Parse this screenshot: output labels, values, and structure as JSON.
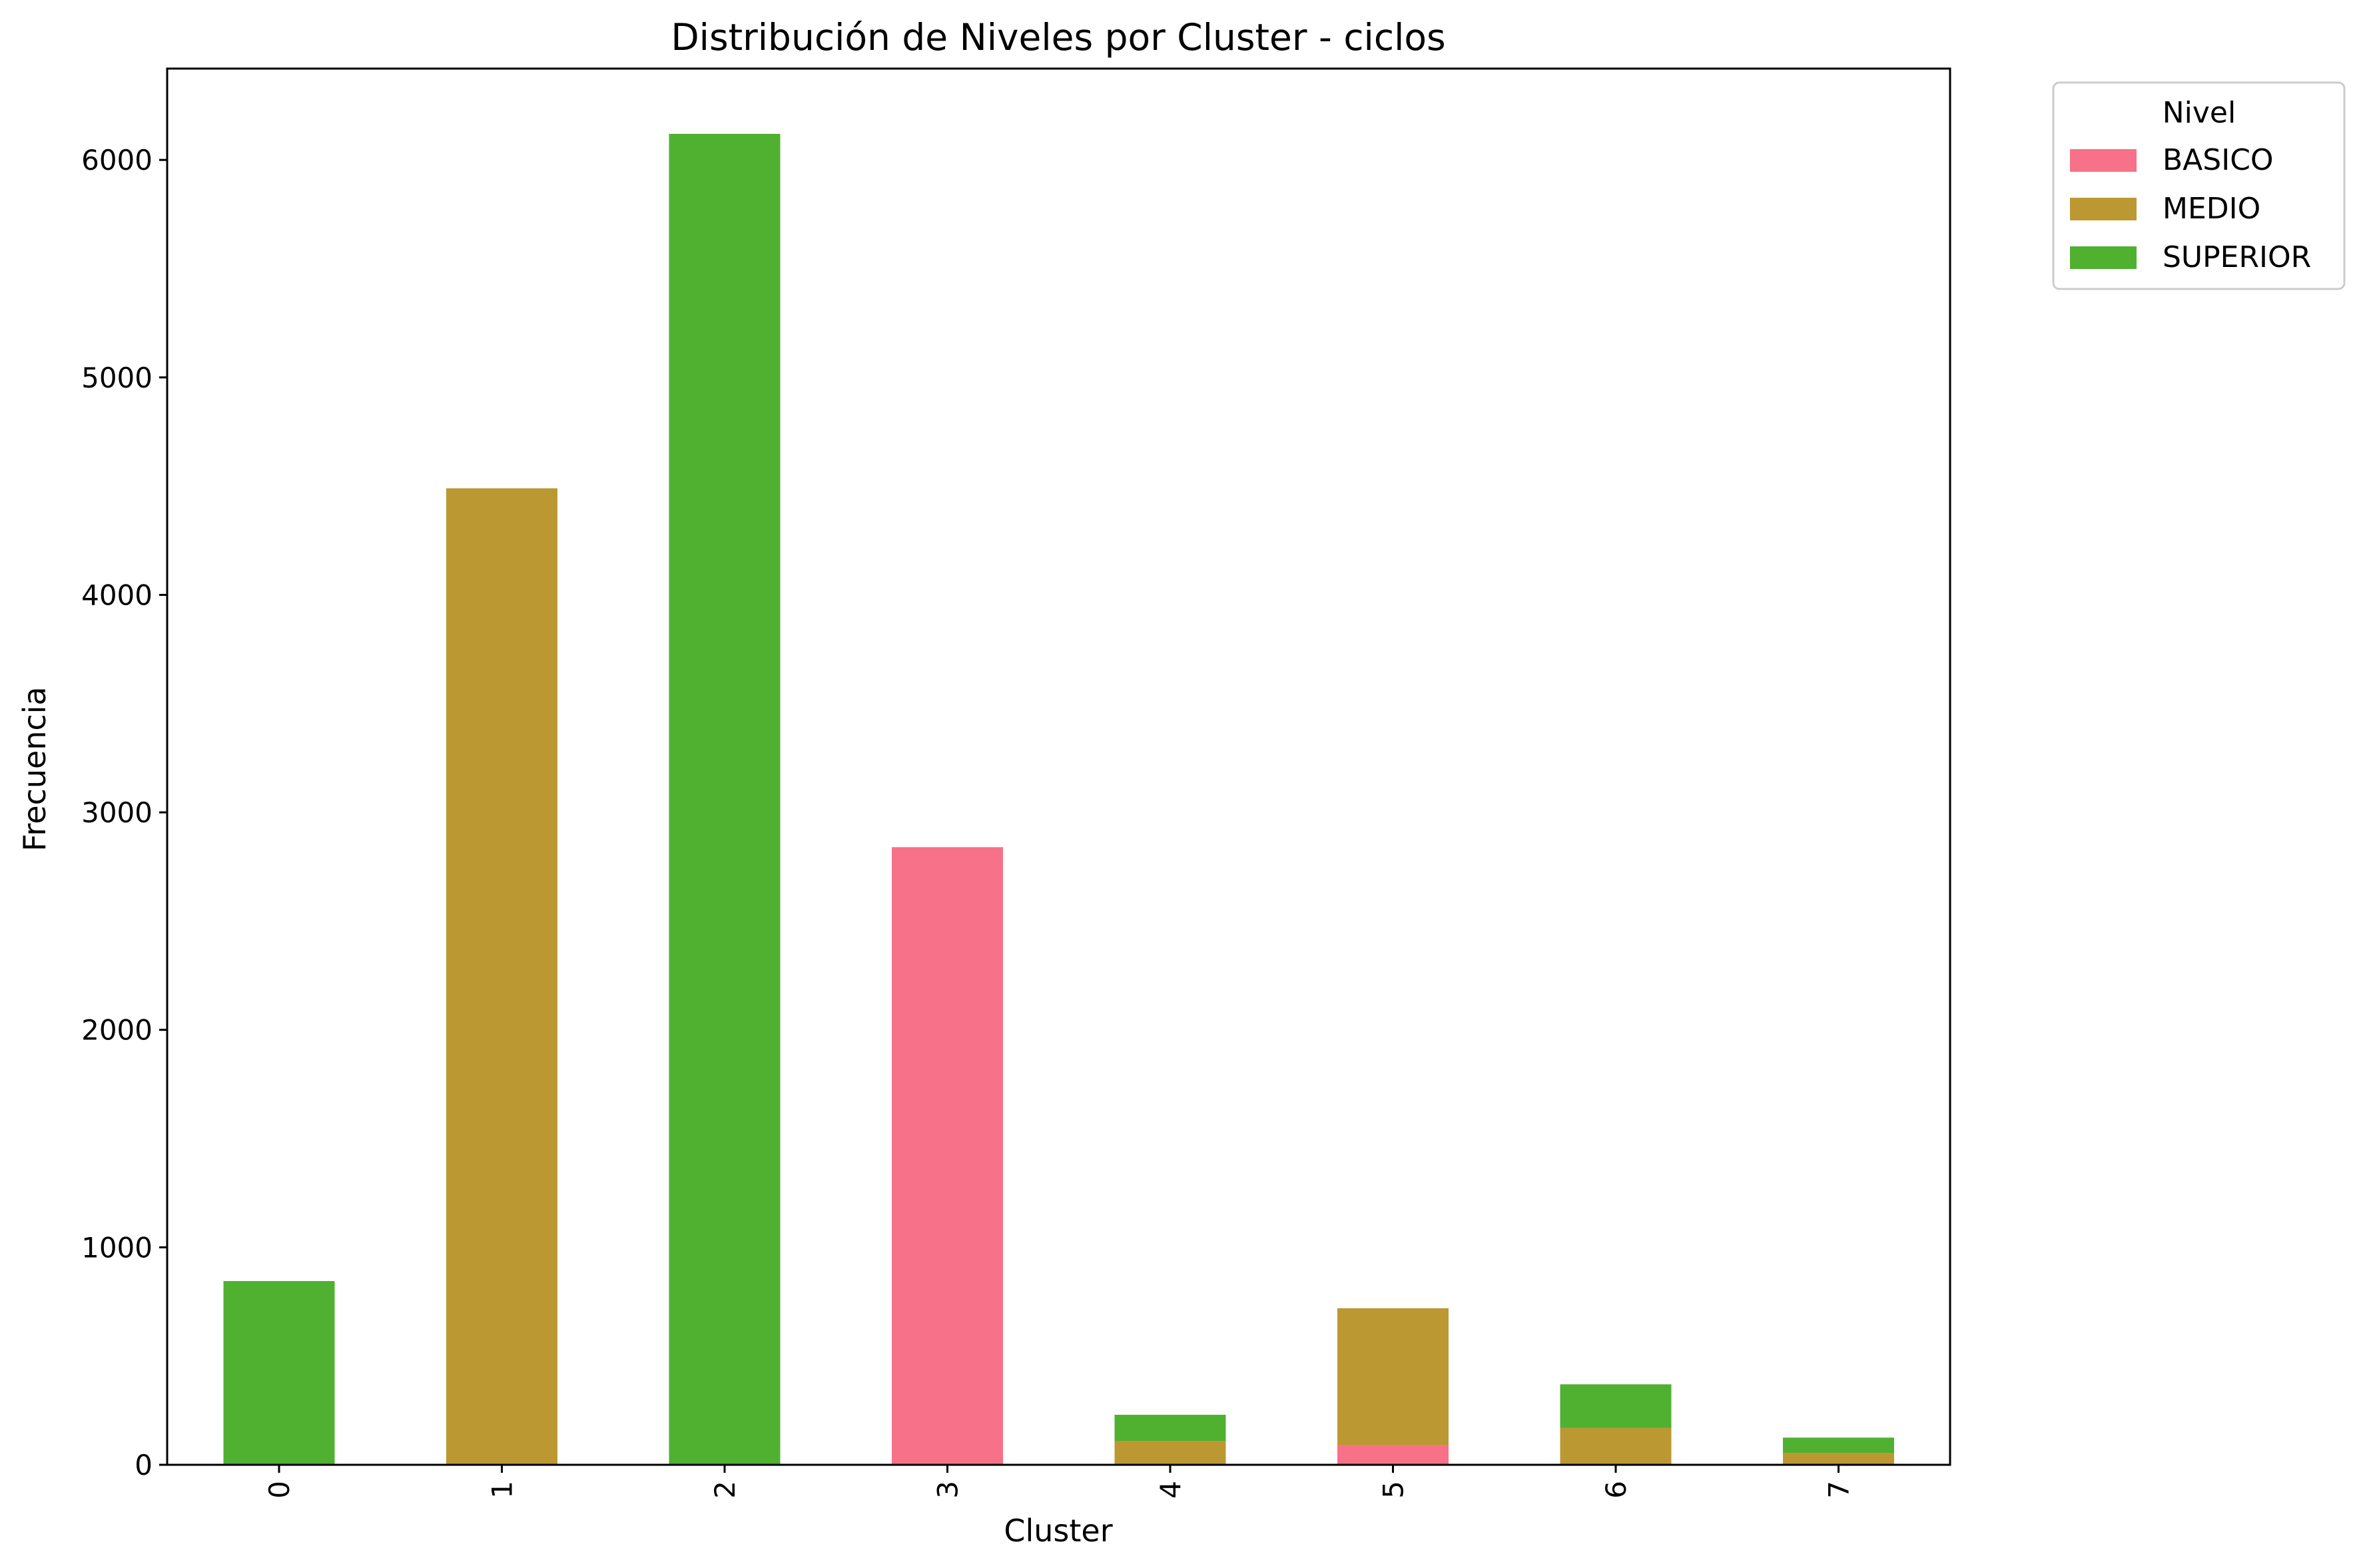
{
  "chart_data": {
    "type": "bar",
    "stacked": true,
    "title": "Distribución de Niveles por Cluster - ciclos",
    "xlabel": "Cluster",
    "ylabel": "Frecuencia",
    "categories": [
      "0",
      "1",
      "2",
      "3",
      "4",
      "5",
      "6",
      "7"
    ],
    "ylim": [
      0,
      6420
    ],
    "yticks": [
      "0",
      "1000",
      "2000",
      "3000",
      "4000",
      "5000",
      "6000"
    ],
    "grid": false,
    "legend": {
      "title": "Nivel",
      "position": "outside top-right"
    },
    "series": [
      {
        "name": "BASICO",
        "color": "#f77189",
        "values": [
          0,
          0,
          0,
          2840,
          0,
          90,
          0,
          0
        ]
      },
      {
        "name": "MEDIO",
        "color": "#bb9832",
        "values": [
          0,
          4490,
          0,
          0,
          110,
          630,
          170,
          55
        ]
      },
      {
        "name": "SUPERIOR",
        "color": "#50b131",
        "values": [
          845,
          0,
          6120,
          0,
          120,
          0,
          200,
          70
        ]
      }
    ]
  }
}
